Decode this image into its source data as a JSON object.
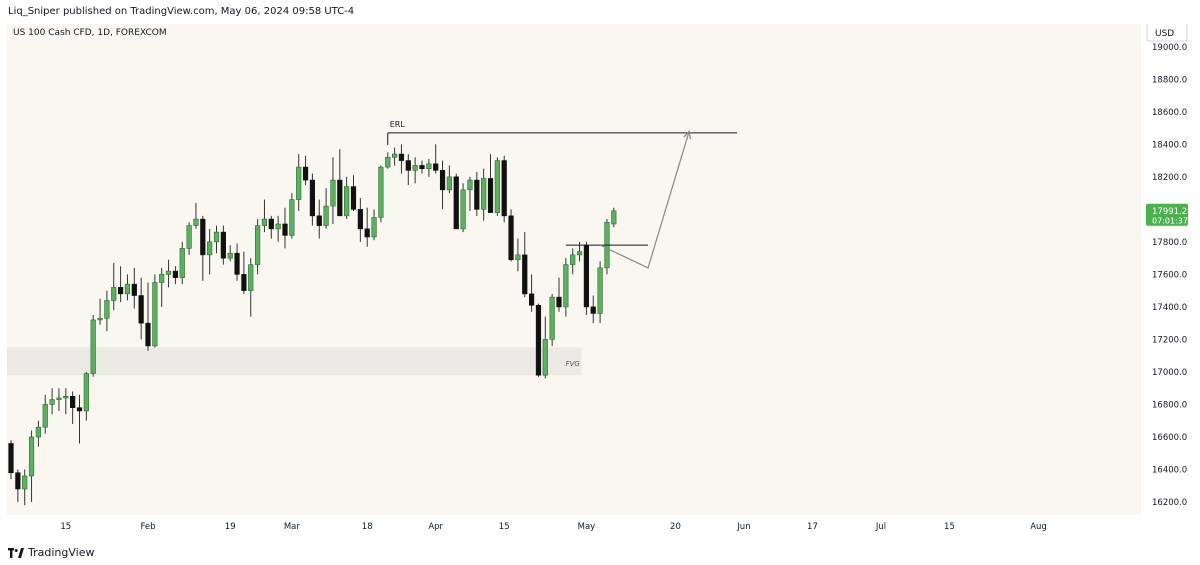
{
  "header": {
    "publisher_line": "Liq_Sniper published on TradingView.com, May 06, 2024 09:58 UTC-4"
  },
  "footer": {
    "brand": "TradingView"
  },
  "colors": {
    "background": "#faf7f1",
    "up": "#5cb060",
    "down": "#111111",
    "wick": "#333333",
    "annotation": "#888888",
    "fvg_zone": "#ece9e4",
    "price_badge": "#4caf50"
  },
  "icons": {
    "logo": "tradingview-logo-icon"
  },
  "chart_data": {
    "type": "candlestick",
    "symbol": "US 100 Cash CFD, 1D, FOREXCOM",
    "currency": "USD",
    "ylim": [
      16120,
      19140
    ],
    "y_ticks": [
      16200,
      16400,
      16600,
      16800,
      17000,
      17200,
      17400,
      17600,
      17800,
      18000,
      18200,
      18400,
      18600,
      18800,
      19000
    ],
    "y_tick_labels": [
      "16200.0",
      "16400.0",
      "16600.0",
      "16800.0",
      "17000.0",
      "17200.0",
      "17400.0",
      "17600.0",
      "17800.0",
      "18000.0",
      "18200.0",
      "18400.0",
      "18600.0",
      "18800.0",
      "19000.0"
    ],
    "x_ticks": [
      {
        "label": "15",
        "index": 8
      },
      {
        "label": "Feb",
        "index": 20
      },
      {
        "label": "19",
        "index": 32
      },
      {
        "label": "Mar",
        "index": 41
      },
      {
        "label": "18",
        "index": 52
      },
      {
        "label": "Apr",
        "index": 62
      },
      {
        "label": "15",
        "index": 72
      },
      {
        "label": "May",
        "index": 84
      },
      {
        "label": "20",
        "index": 97
      },
      {
        "label": "Jun",
        "index": 107
      },
      {
        "label": "17",
        "index": 117
      },
      {
        "label": "Jul",
        "index": 127
      },
      {
        "label": "15",
        "index": 137
      },
      {
        "label": "Aug",
        "index": 150
      }
    ],
    "last_price": {
      "value": 17991.2,
      "label": "17991.2",
      "countdown": "07:01:37"
    },
    "annotations": {
      "erl": {
        "label": "ERL",
        "price": 18470,
        "from_index": 55,
        "to_index": 106
      },
      "fvg": {
        "label": "FVG",
        "low": 16980,
        "high": 17150,
        "from_index": 0,
        "to_index": 83
      },
      "minor_level": {
        "price": 17780,
        "from_index": 81,
        "to_index": 93
      },
      "projection": [
        {
          "index": 86,
          "price": 17780
        },
        {
          "index": 93,
          "price": 17640
        },
        {
          "index": 99,
          "price": 18480
        }
      ]
    },
    "candles": [
      {
        "o": 16560,
        "h": 16580,
        "l": 16340,
        "c": 16380
      },
      {
        "o": 16380,
        "h": 16400,
        "l": 16200,
        "c": 16280
      },
      {
        "o": 16280,
        "h": 16400,
        "l": 16180,
        "c": 16360
      },
      {
        "o": 16360,
        "h": 16640,
        "l": 16200,
        "c": 16600
      },
      {
        "o": 16600,
        "h": 16700,
        "l": 16540,
        "c": 16660
      },
      {
        "o": 16660,
        "h": 16860,
        "l": 16620,
        "c": 16800
      },
      {
        "o": 16800,
        "h": 16900,
        "l": 16740,
        "c": 16830
      },
      {
        "o": 16830,
        "h": 16900,
        "l": 16760,
        "c": 16840
      },
      {
        "o": 16840,
        "h": 16900,
        "l": 16740,
        "c": 16850
      },
      {
        "o": 16850,
        "h": 16880,
        "l": 16680,
        "c": 16780
      },
      {
        "o": 16780,
        "h": 16860,
        "l": 16560,
        "c": 16760
      },
      {
        "o": 16760,
        "h": 17000,
        "l": 16700,
        "c": 16990
      },
      {
        "o": 16990,
        "h": 17350,
        "l": 16970,
        "c": 17320
      },
      {
        "o": 17320,
        "h": 17450,
        "l": 17290,
        "c": 17330
      },
      {
        "o": 17330,
        "h": 17500,
        "l": 17250,
        "c": 17440
      },
      {
        "o": 17440,
        "h": 17670,
        "l": 17380,
        "c": 17520
      },
      {
        "o": 17520,
        "h": 17650,
        "l": 17430,
        "c": 17480
      },
      {
        "o": 17480,
        "h": 17600,
        "l": 17440,
        "c": 17540
      },
      {
        "o": 17540,
        "h": 17640,
        "l": 17390,
        "c": 17470
      },
      {
        "o": 17470,
        "h": 17580,
        "l": 17200,
        "c": 17300
      },
      {
        "o": 17300,
        "h": 17550,
        "l": 17130,
        "c": 17160
      },
      {
        "o": 17160,
        "h": 17600,
        "l": 17150,
        "c": 17550
      },
      {
        "o": 17550,
        "h": 17640,
        "l": 17400,
        "c": 17600
      },
      {
        "o": 17600,
        "h": 17690,
        "l": 17520,
        "c": 17620
      },
      {
        "o": 17620,
        "h": 17650,
        "l": 17540,
        "c": 17580
      },
      {
        "o": 17580,
        "h": 17800,
        "l": 17540,
        "c": 17760
      },
      {
        "o": 17760,
        "h": 17920,
        "l": 17720,
        "c": 17900
      },
      {
        "o": 17900,
        "h": 18040,
        "l": 17880,
        "c": 17940
      },
      {
        "o": 17940,
        "h": 17960,
        "l": 17560,
        "c": 17720
      },
      {
        "o": 17720,
        "h": 17880,
        "l": 17600,
        "c": 17800
      },
      {
        "o": 17800,
        "h": 17900,
        "l": 17730,
        "c": 17860
      },
      {
        "o": 17860,
        "h": 17900,
        "l": 17660,
        "c": 17700
      },
      {
        "o": 17700,
        "h": 17780,
        "l": 17680,
        "c": 17730
      },
      {
        "o": 17730,
        "h": 17790,
        "l": 17560,
        "c": 17600
      },
      {
        "o": 17600,
        "h": 17740,
        "l": 17480,
        "c": 17500
      },
      {
        "o": 17500,
        "h": 17700,
        "l": 17340,
        "c": 17660
      },
      {
        "o": 17660,
        "h": 17940,
        "l": 17600,
        "c": 17900
      },
      {
        "o": 17900,
        "h": 18060,
        "l": 17860,
        "c": 17940
      },
      {
        "o": 17940,
        "h": 17960,
        "l": 17820,
        "c": 17880
      },
      {
        "o": 17880,
        "h": 17960,
        "l": 17800,
        "c": 17910
      },
      {
        "o": 17910,
        "h": 18010,
        "l": 17760,
        "c": 17840
      },
      {
        "o": 17840,
        "h": 18100,
        "l": 17820,
        "c": 18060
      },
      {
        "o": 18060,
        "h": 18340,
        "l": 17990,
        "c": 18260
      },
      {
        "o": 18260,
        "h": 18330,
        "l": 18150,
        "c": 18180
      },
      {
        "o": 18180,
        "h": 18220,
        "l": 17900,
        "c": 17960
      },
      {
        "o": 17960,
        "h": 18060,
        "l": 17820,
        "c": 17900
      },
      {
        "o": 17900,
        "h": 18130,
        "l": 17880,
        "c": 18020
      },
      {
        "o": 18020,
        "h": 18320,
        "l": 17910,
        "c": 18180
      },
      {
        "o": 18180,
        "h": 18370,
        "l": 17960,
        "c": 17960
      },
      {
        "o": 17960,
        "h": 18200,
        "l": 17940,
        "c": 18140
      },
      {
        "o": 18140,
        "h": 18210,
        "l": 17990,
        "c": 18000
      },
      {
        "o": 18000,
        "h": 18070,
        "l": 17800,
        "c": 17880
      },
      {
        "o": 17880,
        "h": 18010,
        "l": 17770,
        "c": 17830
      },
      {
        "o": 17830,
        "h": 18000,
        "l": 17810,
        "c": 17950
      },
      {
        "o": 17950,
        "h": 18270,
        "l": 17920,
        "c": 18260
      },
      {
        "o": 18260,
        "h": 18350,
        "l": 18250,
        "c": 18320
      },
      {
        "o": 18320,
        "h": 18380,
        "l": 18270,
        "c": 18340
      },
      {
        "o": 18340,
        "h": 18400,
        "l": 18220,
        "c": 18300
      },
      {
        "o": 18300,
        "h": 18340,
        "l": 18150,
        "c": 18240
      },
      {
        "o": 18240,
        "h": 18320,
        "l": 18160,
        "c": 18270
      },
      {
        "o": 18270,
        "h": 18300,
        "l": 18220,
        "c": 18250
      },
      {
        "o": 18250,
        "h": 18310,
        "l": 18200,
        "c": 18280
      },
      {
        "o": 18280,
        "h": 18400,
        "l": 18220,
        "c": 18240
      },
      {
        "o": 18240,
        "h": 18300,
        "l": 18000,
        "c": 18120
      },
      {
        "o": 18120,
        "h": 18270,
        "l": 18100,
        "c": 18200
      },
      {
        "o": 18200,
        "h": 18220,
        "l": 17880,
        "c": 17880
      },
      {
        "o": 17880,
        "h": 18160,
        "l": 17860,
        "c": 18120
      },
      {
        "o": 18120,
        "h": 18200,
        "l": 17990,
        "c": 18180
      },
      {
        "o": 18180,
        "h": 18230,
        "l": 17960,
        "c": 18000
      },
      {
        "o": 18000,
        "h": 18250,
        "l": 17930,
        "c": 18190
      },
      {
        "o": 18190,
        "h": 18340,
        "l": 17980,
        "c": 17980
      },
      {
        "o": 17980,
        "h": 18320,
        "l": 17960,
        "c": 18300
      },
      {
        "o": 18300,
        "h": 18330,
        "l": 17920,
        "c": 17960
      },
      {
        "o": 17960,
        "h": 18000,
        "l": 17680,
        "c": 17690
      },
      {
        "o": 17690,
        "h": 17820,
        "l": 17620,
        "c": 17720
      },
      {
        "o": 17720,
        "h": 17860,
        "l": 17460,
        "c": 17480
      },
      {
        "o": 17480,
        "h": 17600,
        "l": 17370,
        "c": 17410
      },
      {
        "o": 17410,
        "h": 17420,
        "l": 16970,
        "c": 16980
      },
      {
        "o": 16980,
        "h": 17340,
        "l": 16960,
        "c": 17200
      },
      {
        "o": 17200,
        "h": 17480,
        "l": 17160,
        "c": 17460
      },
      {
        "o": 17460,
        "h": 17580,
        "l": 17370,
        "c": 17400
      },
      {
        "o": 17400,
        "h": 17700,
        "l": 17340,
        "c": 17660
      },
      {
        "o": 17660,
        "h": 17760,
        "l": 17600,
        "c": 17720
      },
      {
        "o": 17720,
        "h": 17800,
        "l": 17680,
        "c": 17740
      },
      {
        "o": 17780,
        "h": 17800,
        "l": 17350,
        "c": 17400
      },
      {
        "o": 17400,
        "h": 17470,
        "l": 17300,
        "c": 17360
      },
      {
        "o": 17360,
        "h": 17680,
        "l": 17300,
        "c": 17640
      },
      {
        "o": 17640,
        "h": 17940,
        "l": 17600,
        "c": 17920
      },
      {
        "o": 17910,
        "h": 18010,
        "l": 17890,
        "c": 17991.2
      }
    ]
  }
}
